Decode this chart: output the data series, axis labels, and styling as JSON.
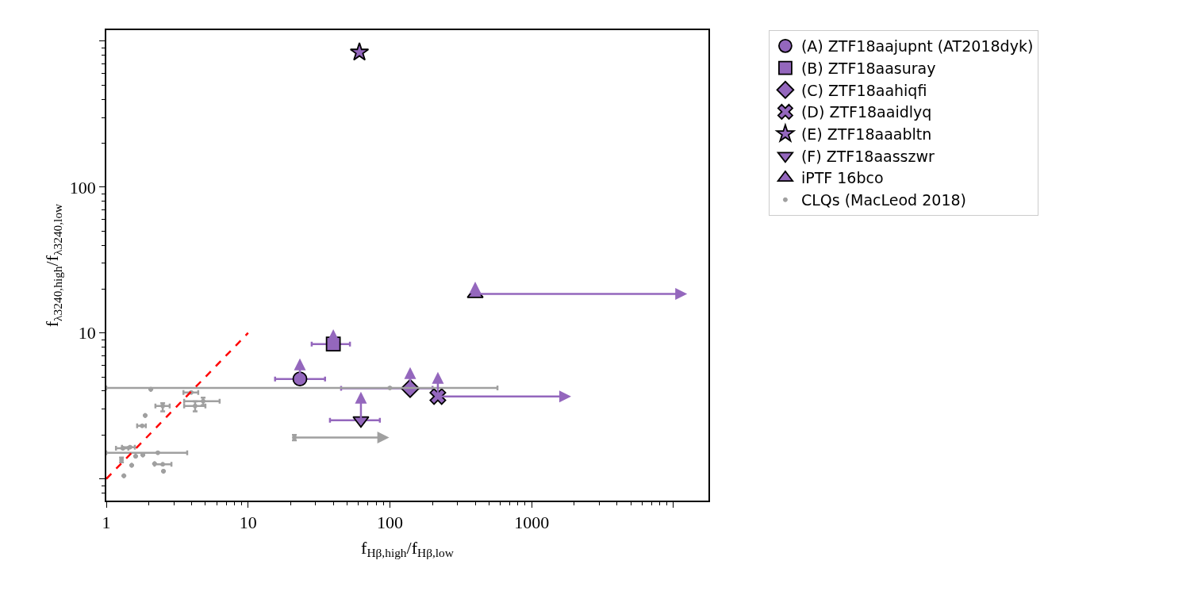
{
  "chart_data": {
    "type": "scatter",
    "xlabel": "f$_{Hβ,high}$/f$_{Hβ,low}$",
    "ylabel": "f$_{λ3240,high}$/f$_{λ3240,low}$",
    "log": "xy",
    "xlim": [
      1,
      17660
    ],
    "ylim": [
      0.71,
      1190
    ],
    "xticks": [
      1,
      10,
      100,
      1000,
      {
        "value": 10000,
        "label": null
      }
    ],
    "yticks": [
      {
        "value": 1,
        "label": null
      },
      10,
      100,
      {
        "value": 1000,
        "label": null
      }
    ],
    "legend": "top right",
    "series": [
      {
        "name": "(A) ZTF18aajupnt (AT2018dyk)",
        "color": "#9467bd",
        "marker": "circle",
        "x": [
          23.2
        ],
        "values": [
          4.84
        ],
        "xerrors": [
          [
            15.5,
            34.9
          ]
        ],
        "errors": [
          [
            4.84,
            6.7
          ]
        ]
      },
      {
        "name": "(B) ZTF18aasuray",
        "color": "#9467bd",
        "marker": "square",
        "x": [
          39.9
        ],
        "values": [
          8.4
        ],
        "xerrors": [
          [
            28.1,
            52.3
          ]
        ],
        "errors": [
          [
            8.4,
            10.6
          ]
        ]
      },
      {
        "name": "(C) ZTF18aahiqfi",
        "color": "#9467bd",
        "marker": "diamond",
        "x": [
          139
        ],
        "values": [
          4.17
        ],
        "xerrors": [
          [
            45.3,
            200
          ]
        ],
        "errors": [
          [
            4.17,
            5.84
          ]
        ]
      },
      {
        "name": "(D) ZTF18aaidlyq",
        "color": "#9467bd",
        "marker": "cross",
        "x": [
          218
        ],
        "values": [
          3.67
        ],
        "xerrors": [
          [
            218,
            1900
          ]
        ],
        "errors": [
          [
            3.67,
            5.41
          ]
        ]
      },
      {
        "name": "(E) ZTF18aaabltn",
        "color": "#9467bd",
        "marker": "star",
        "x": [
          61
        ],
        "values": [
          839
        ],
        "xerrors": [
          [
            59,
            63
          ]
        ],
        "errors": [
          null
        ]
      },
      {
        "name": "(F) ZTF18aasszwr",
        "color": "#9467bd",
        "marker": "triangle-down",
        "x": [
          62.5
        ],
        "values": [
          2.52
        ],
        "xerrors": [
          [
            37.8,
            85
          ]
        ],
        "errors": [
          [
            2.52,
            3.96
          ]
        ]
      },
      {
        "name": "iPTF 16bco",
        "color": "#9467bd",
        "marker": "triangle",
        "x": [
          400
        ],
        "values": [
          18.5
        ],
        "xerrors": [
          [
            400,
            12500
          ]
        ],
        "errors": [
          [
            18.5,
            22.5
          ]
        ]
      },
      {
        "name": "CLQs (MacLeod 2018)",
        "color": "#a0a0a0",
        "marker": "circle",
        "x": [
          100,
          2.06,
          3.97,
          2.5,
          4.23,
          4.82,
          1.88,
          1.79,
          21.2,
          1.47,
          1.31,
          2.31,
          1.81,
          1.61,
          1.28,
          1.51,
          2.19,
          2.5,
          2.53,
          1.33
        ],
        "values": [
          4.2,
          4.11,
          3.91,
          3.16,
          3.16,
          3.41,
          2.72,
          2.31,
          1.92,
          1.65,
          1.62,
          1.51,
          1.46,
          1.43,
          1.35,
          1.24,
          1.27,
          1.26,
          1.13,
          1.05
        ],
        "xerrors": [
          [
            1,
            574
          ],
          null,
          [
            3.5,
            4.45
          ],
          [
            2.22,
            2.8
          ],
          [
            3.54,
            5.0
          ],
          [
            3.54,
            6.3
          ],
          null,
          [
            1.65,
            1.9
          ],
          [
            21.2,
            99
          ],
          [
            1.29,
            1.59
          ],
          [
            1.17,
            1.43
          ],
          [
            1,
            3.72
          ],
          null,
          null,
          null,
          null,
          null,
          [
            2.19,
            2.88
          ],
          null,
          null
        ],
        "errors": [
          null,
          null,
          null,
          [
            2.9,
            3.3
          ],
          [
            2.9,
            3.4
          ],
          [
            3.2,
            3.6
          ],
          null,
          null,
          [
            1.84,
            2.0
          ],
          null,
          null,
          null,
          null,
          null,
          [
            1.3,
            1.4
          ],
          null,
          null,
          null,
          null,
          null
        ]
      },
      {
        "type": "line",
        "color": "#ff0000",
        "line_style": "dashed",
        "marker": "none",
        "x": [
          1,
          10
        ],
        "values": [
          1,
          10
        ]
      }
    ]
  }
}
